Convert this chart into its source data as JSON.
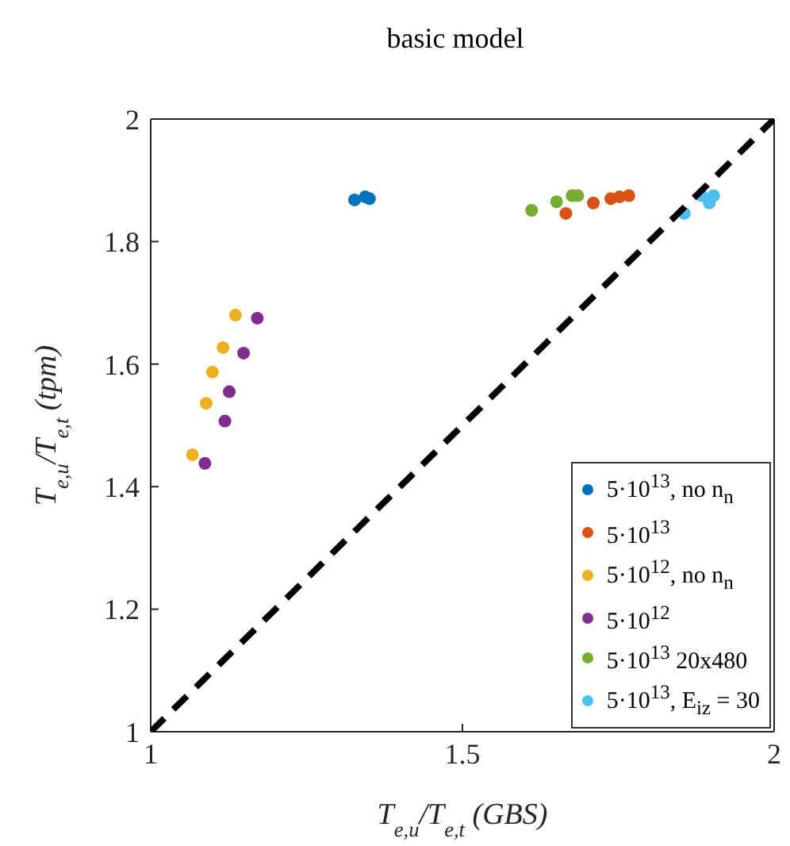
{
  "chart_data": {
    "type": "scatter",
    "title": "basic model",
    "xlabel": "T$_{e,u}$/T$_{e,t}$ (GBS)",
    "ylabel": "T$_{e,u}$/T$_{e,t}$ (tpm)",
    "xlim": [
      1,
      2
    ],
    "ylim": [
      1,
      2
    ],
    "xticks": [
      1,
      1.5,
      2
    ],
    "yticks": [
      1,
      1.2,
      1.4,
      1.6,
      1.8,
      2
    ],
    "legend": "bottom right",
    "marker": "circle",
    "series": [
      {
        "name": "5·10$^{13}$, no n$_{n}$",
        "color": "#0072bd",
        "x": [
          1.327,
          1.344,
          1.351
        ],
        "values": [
          1.868,
          1.873,
          1.87
        ]
      },
      {
        "name": "5·10$^{13}$",
        "color": "#d95319",
        "x": [
          1.666,
          1.71,
          1.738,
          1.752,
          1.767
        ],
        "values": [
          1.846,
          1.863,
          1.87,
          1.873,
          1.875
        ]
      },
      {
        "name": "5·10$^{12}$, no n$_{n}$",
        "color": "#edb120",
        "x": [
          1.136,
          1.116,
          1.099,
          1.089,
          1.067
        ],
        "values": [
          1.68,
          1.627,
          1.587,
          1.536,
          1.452
        ]
      },
      {
        "name": "5·10$^{12}$",
        "color": "#7e2f8e",
        "x": [
          1.171,
          1.149,
          1.126,
          1.119,
          1.087
        ],
        "values": [
          1.675,
          1.618,
          1.555,
          1.507,
          1.438
        ]
      },
      {
        "name": "5·10$^{13}$ 20x480",
        "color": "#77ac30",
        "x": [
          1.611,
          1.651,
          1.676,
          1.685
        ],
        "values": [
          1.851,
          1.865,
          1.875,
          1.875
        ]
      },
      {
        "name": "5·10$^{13}$, E$_{iz}$ = 30",
        "color": "#4dbeee",
        "x": [
          1.856,
          1.884,
          1.896,
          1.903
        ],
        "values": [
          1.846,
          1.875,
          1.863,
          1.875
        ]
      },
      {
        "type": "line",
        "color": "#000000",
        "line_style": "dashed",
        "marker": "none",
        "x": [
          1,
          2
        ],
        "values": [
          1,
          2
        ]
      }
    ]
  }
}
